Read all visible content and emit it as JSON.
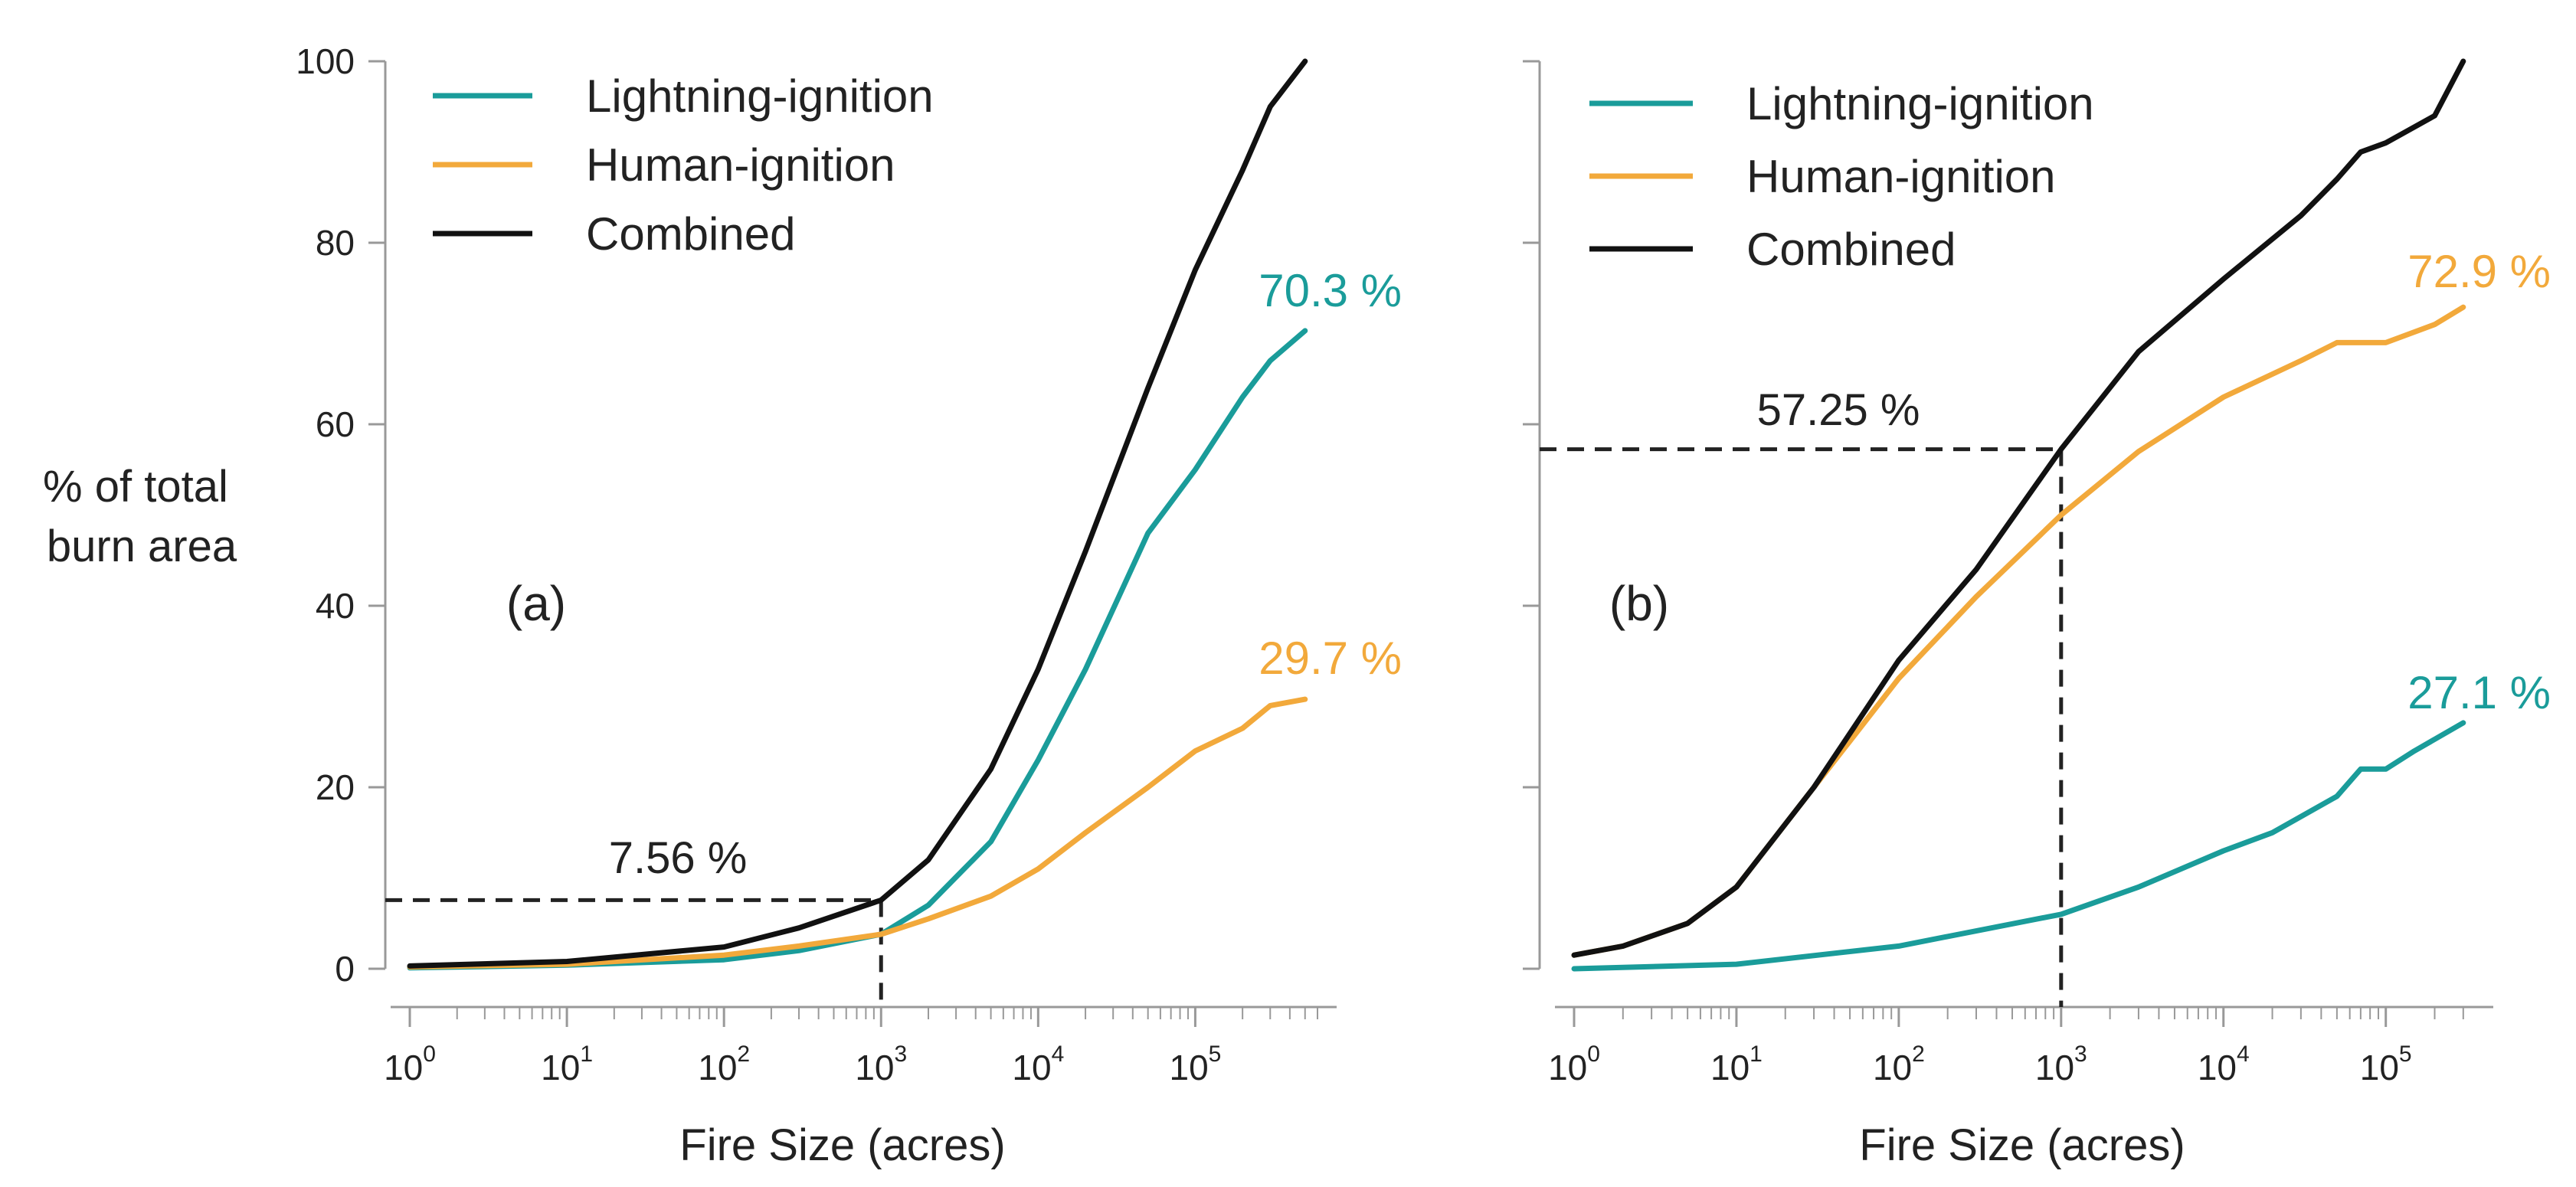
{
  "figure": {
    "ylabel_lines": [
      "% of total",
      "burn area"
    ]
  },
  "chart_data": [
    {
      "type": "line",
      "panel_label": "(a)",
      "xlabel": "Fire Size (acres)",
      "ylabel": "% of total burn area",
      "xscale": "log10",
      "xlim": [
        1,
        600000
      ],
      "ylim": [
        0,
        100
      ],
      "x_tick_labels": [
        {
          "base": "10",
          "exp": "0"
        },
        {
          "base": "10",
          "exp": "1"
        },
        {
          "base": "10",
          "exp": "2"
        },
        {
          "base": "10",
          "exp": "3"
        },
        {
          "base": "10",
          "exp": "4"
        },
        {
          "base": "10",
          "exp": "5"
        }
      ],
      "y_ticks": [
        0,
        20,
        40,
        60,
        80,
        100
      ],
      "y_tick_labels": [
        "0",
        "20",
        "40",
        "60",
        "80",
        "100"
      ],
      "legend": [
        {
          "label": "Lightning-ignition",
          "color": "#1a9c9a"
        },
        {
          "label": "Human-ignition",
          "color": "#f2a93b"
        },
        {
          "label": "Combined",
          "color": "#111111"
        }
      ],
      "series": [
        {
          "name": "Lightning-ignition",
          "color": "#1a9c9a",
          "x": [
            1,
            10,
            100,
            300,
            1000,
            2000,
            5000,
            10000,
            20000,
            50000,
            100000,
            200000,
            300000,
            500000
          ],
          "y": [
            0.1,
            0.4,
            1.0,
            2.0,
            3.8,
            7.0,
            14.0,
            23.0,
            33.0,
            48.0,
            55.0,
            63.0,
            67.0,
            70.3
          ]
        },
        {
          "name": "Human-ignition",
          "color": "#f2a93b",
          "x": [
            1,
            10,
            100,
            300,
            1000,
            2000,
            5000,
            10000,
            20000,
            50000,
            100000,
            200000,
            300000,
            500000
          ],
          "y": [
            0.2,
            0.5,
            1.5,
            2.5,
            3.8,
            5.5,
            8.0,
            11.0,
            15.0,
            20.0,
            24.0,
            26.5,
            29.0,
            29.7
          ]
        },
        {
          "name": "Combined",
          "color": "#111111",
          "x": [
            1,
            10,
            100,
            300,
            1000,
            2000,
            5000,
            10000,
            20000,
            50000,
            100000,
            200000,
            300000,
            500000
          ],
          "y": [
            0.3,
            0.8,
            2.4,
            4.5,
            7.56,
            12.0,
            22.0,
            33.0,
            46.0,
            64.0,
            77.0,
            88.0,
            95.0,
            100.0
          ]
        }
      ],
      "reference": {
        "x": 1000,
        "y": 7.56,
        "label": "7.56 %"
      },
      "end_labels": [
        {
          "text": "70.3 %",
          "series": "Lightning-ignition",
          "color": "#1a9c9a"
        },
        {
          "text": "29.7 %",
          "series": "Human-ignition",
          "color": "#f2a93b"
        }
      ]
    },
    {
      "type": "line",
      "panel_label": "(b)",
      "xlabel": "Fire Size (acres)",
      "ylabel": "",
      "xscale": "log10",
      "xlim": [
        1,
        350000
      ],
      "ylim": [
        0,
        100
      ],
      "x_tick_labels": [
        {
          "base": "10",
          "exp": "0"
        },
        {
          "base": "10",
          "exp": "1"
        },
        {
          "base": "10",
          "exp": "2"
        },
        {
          "base": "10",
          "exp": "3"
        },
        {
          "base": "10",
          "exp": "4"
        },
        {
          "base": "10",
          "exp": "5"
        }
      ],
      "y_ticks": [
        0,
        20,
        40,
        60,
        80,
        100
      ],
      "y_tick_labels": [],
      "legend": [
        {
          "label": "Lightning-ignition",
          "color": "#1a9c9a"
        },
        {
          "label": "Human-ignition",
          "color": "#f2a93b"
        },
        {
          "label": "Combined",
          "color": "#111111"
        }
      ],
      "series": [
        {
          "name": "Lightning-ignition",
          "color": "#1a9c9a",
          "x": [
            1,
            10,
            100,
            1000,
            3000,
            10000,
            20000,
            50000,
            70000,
            100000,
            150000,
            300000
          ],
          "y": [
            0.0,
            0.5,
            2.5,
            6.0,
            9.0,
            13.0,
            15.0,
            19.0,
            22.0,
            22.0,
            24.0,
            27.1
          ]
        },
        {
          "name": "Human-ignition",
          "color": "#f2a93b",
          "x": [
            1,
            2,
            5,
            10,
            30,
            100,
            300,
            1000,
            3000,
            10000,
            30000,
            50000,
            100000,
            200000,
            300000
          ],
          "y": [
            1.5,
            2.5,
            5.0,
            9.0,
            20.0,
            32.0,
            41.0,
            50.0,
            57.0,
            63.0,
            67.0,
            69.0,
            69.0,
            71.0,
            72.9
          ]
        },
        {
          "name": "Combined",
          "color": "#111111",
          "x": [
            1,
            2,
            5,
            10,
            30,
            100,
            300,
            1000,
            3000,
            10000,
            30000,
            50000,
            70000,
            100000,
            200000,
            300000
          ],
          "y": [
            1.5,
            2.5,
            5.0,
            9.0,
            20.0,
            34.0,
            44.0,
            57.25,
            68.0,
            76.0,
            83.0,
            87.0,
            90.0,
            91.0,
            94.0,
            100.0
          ]
        }
      ],
      "reference": {
        "x": 1000,
        "y": 57.25,
        "label": "57.25 %"
      },
      "end_labels": [
        {
          "text": "72.9 %",
          "series": "Human-ignition",
          "color": "#f2a93b"
        },
        {
          "text": "27.1 %",
          "series": "Lightning-ignition",
          "color": "#1a9c9a"
        }
      ]
    }
  ]
}
